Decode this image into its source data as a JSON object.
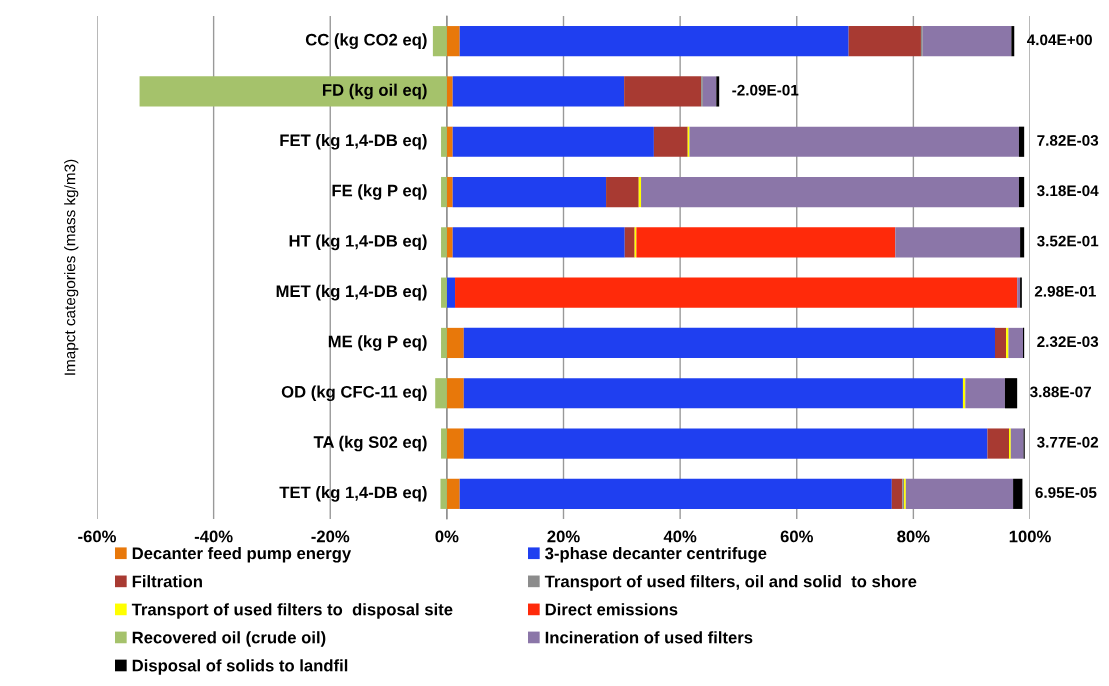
{
  "chart_data": {
    "type": "bar",
    "orientation": "horizontal",
    "stacked": true,
    "ylabel": "Imapct categories (mass kg/m3)",
    "categories": [
      "CC (kg CO2 eq)",
      "FD (kg oil eq)",
      "FET (kg 1,4-DB eq)",
      "FE (kg P eq)",
      "HT (kg 1,4-DB eq)",
      "MET (kg 1,4-DB eq)",
      "ME (kg P eq)",
      "OD (kg CFC-11 eq)",
      "TA (kg S02 eq)",
      "TET (kg 1,4-DB eq)"
    ],
    "series": [
      {
        "name": "Decanter feed pump energy",
        "color": "#e8780a",
        "values": [
          2.2,
          1.0,
          1.0,
          1.0,
          1.0,
          0,
          2.9,
          2.9,
          2.9,
          2.2
        ]
      },
      {
        "name": "3-phase decanter centrifuge",
        "color": "#1f3ff0",
        "values": [
          66.7,
          29.4,
          34.5,
          26.3,
          29.5,
          1.4,
          91.1,
          85.6,
          89.8,
          74.1
        ]
      },
      {
        "name": "Filtration",
        "color": "#a83a32",
        "values": [
          12.4,
          13.2,
          5.8,
          5.6,
          1.7,
          0,
          1.9,
          0,
          3.7,
          1.8
        ]
      },
      {
        "name": "Transport of used filters, oil and solid  to shore",
        "color": "#8c8c8c",
        "values": [
          0.3,
          0.3,
          0,
          0,
          0,
          0,
          0,
          0,
          0,
          0.3
        ]
      },
      {
        "name": "Transport of used filters to  disposal site",
        "color": "#ffff00",
        "values": [
          0,
          0,
          0.3,
          0.4,
          0.3,
          0,
          0.4,
          0.4,
          0.3,
          0.3
        ]
      },
      {
        "name": "Direct emissions",
        "color": "#ff2a0a",
        "values": [
          0,
          0,
          0,
          0,
          44.4,
          96.4,
          0,
          0,
          0,
          0
        ]
      },
      {
        "name": "Recovered oil (crude oil)",
        "color": "#a5c26b",
        "values": [
          -2.4,
          -52.7,
          -1.0,
          -1.0,
          -1.0,
          -1.0,
          -1.0,
          -2.0,
          -1.0,
          -1.1
        ]
      },
      {
        "name": "Incineration of used filters",
        "color": "#8b76a8",
        "values": [
          15.2,
          2.3,
          56.5,
          64.8,
          21.4,
          0.5,
          2.5,
          6.8,
          2.2,
          18.4
        ]
      },
      {
        "name": "Disposal of solids to landfil",
        "color": "#000000",
        "values": [
          0.5,
          0.5,
          0.9,
          0.9,
          0.7,
          0.3,
          0.2,
          2.1,
          0.2,
          1.6
        ]
      }
    ],
    "annotations": [
      {
        "text": "4.04E+00",
        "x": 97.3,
        "y": "CC (kg CO2 eq)"
      },
      {
        "text": "-2.09E-01",
        "x": 46.7,
        "y": "FD (kg oil eq)"
      },
      {
        "text": "7.82E-03",
        "x": 99.0,
        "y": "FET (kg 1,4-DB eq)"
      },
      {
        "text": "3.18E-04",
        "x": 99.0,
        "y": "FE (kg P eq)"
      },
      {
        "text": "3.52E-01",
        "x": 99.0,
        "y": "HT (kg 1,4-DB eq)"
      },
      {
        "text": "2.98E-01",
        "x": 98.6,
        "y": "MET (kg 1,4-DB eq)"
      },
      {
        "text": "2.32E-03",
        "x": 99.0,
        "y": "ME (kg P eq)"
      },
      {
        "text": "3.88E-07",
        "x": 97.8,
        "y": "OD (kg CFC-11 eq)"
      },
      {
        "text": "3.77E-02",
        "x": 99.0,
        "y": "TA (kg S02 eq)"
      },
      {
        "text": "6.95E-05",
        "x": 98.7,
        "y": "TET (kg 1,4-DB eq)"
      }
    ],
    "xlim": [
      -60,
      100
    ],
    "xticks": [
      {
        "value": -60,
        "label": "-60%"
      },
      {
        "value": -40,
        "label": "-40%"
      },
      {
        "value": -20,
        "label": "-20%"
      },
      {
        "value": 0,
        "label": "0%"
      },
      {
        "value": 20,
        "label": "20%"
      },
      {
        "value": 40,
        "label": "40%"
      },
      {
        "value": 60,
        "label": "60%"
      },
      {
        "value": 80,
        "label": "80%"
      },
      {
        "value": 100,
        "label": "100%"
      }
    ],
    "grid": "x",
    "legend": "bottom"
  }
}
